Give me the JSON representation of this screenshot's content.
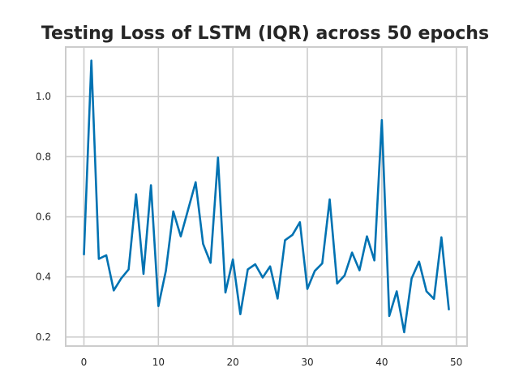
{
  "chart_data": {
    "type": "line",
    "title": "Testing Loss of LSTM (IQR) across 50 epochs",
    "xlabel": "",
    "ylabel": "",
    "xlim": [
      -2.45,
      51.45
    ],
    "ylim": [
      0.17,
      1.165
    ],
    "x_ticks": [
      0,
      10,
      20,
      30,
      40,
      50
    ],
    "y_ticks": [
      0.2,
      0.4,
      0.6,
      0.8,
      1.0
    ],
    "x_tick_labels": [
      "0",
      "10",
      "20",
      "30",
      "40",
      "50"
    ],
    "y_tick_labels": [
      "0.2",
      "0.4",
      "0.6",
      "0.8",
      "1.0"
    ],
    "grid": true,
    "series": [
      {
        "color": "#0072b2",
        "x": [
          0,
          1,
          2,
          3,
          4,
          5,
          6,
          7,
          8,
          9,
          10,
          11,
          12,
          13,
          14,
          15,
          16,
          17,
          18,
          19,
          20,
          21,
          22,
          23,
          24,
          25,
          26,
          27,
          28,
          29,
          30,
          31,
          32,
          33,
          34,
          35,
          36,
          37,
          38,
          39,
          40,
          41,
          42,
          43,
          44,
          45,
          46,
          47,
          48,
          49
        ],
        "values": [
          0.475,
          1.12,
          0.46,
          0.472,
          0.355,
          0.395,
          0.425,
          0.675,
          0.41,
          0.705,
          0.303,
          0.42,
          0.618,
          0.535,
          0.625,
          0.715,
          0.51,
          0.447,
          0.797,
          0.348,
          0.458,
          0.276,
          0.425,
          0.442,
          0.398,
          0.435,
          0.328,
          0.522,
          0.54,
          0.582,
          0.36,
          0.42,
          0.445,
          0.658,
          0.378,
          0.405,
          0.481,
          0.422,
          0.535,
          0.455,
          0.922,
          0.27,
          0.352,
          0.216,
          0.395,
          0.451,
          0.352,
          0.327,
          0.532,
          0.292
        ]
      }
    ]
  }
}
